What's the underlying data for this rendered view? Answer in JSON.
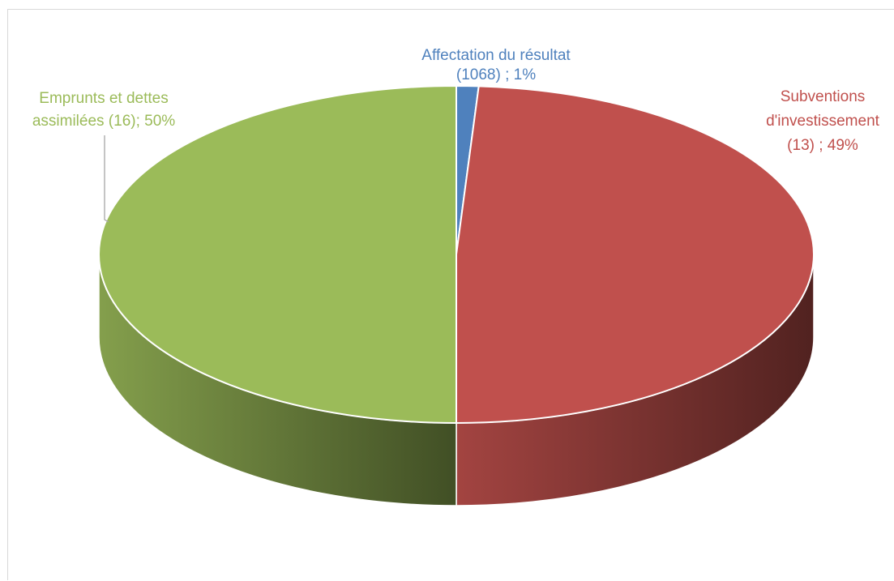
{
  "chart_data": {
    "type": "pie",
    "three_d": true,
    "title": "",
    "slices": [
      {
        "name": "Affectation du résultat",
        "label_lines": [
          "Affectation du résultat",
          "(1068) ; 1%"
        ],
        "value": 1,
        "color": "#4f81bd"
      },
      {
        "name": "Subventions d'investissement",
        "label_lines": [
          "Subventions",
          "d'investissement",
          "(13) ; 49%"
        ],
        "value": 49,
        "color": "#c0504d"
      },
      {
        "name": "Emprunts et dettes assimilées",
        "label_lines": [
          "Emprunts et dettes",
          "assimilées (16); 50%"
        ],
        "value": 50,
        "color": "#9bbb59"
      }
    ]
  }
}
